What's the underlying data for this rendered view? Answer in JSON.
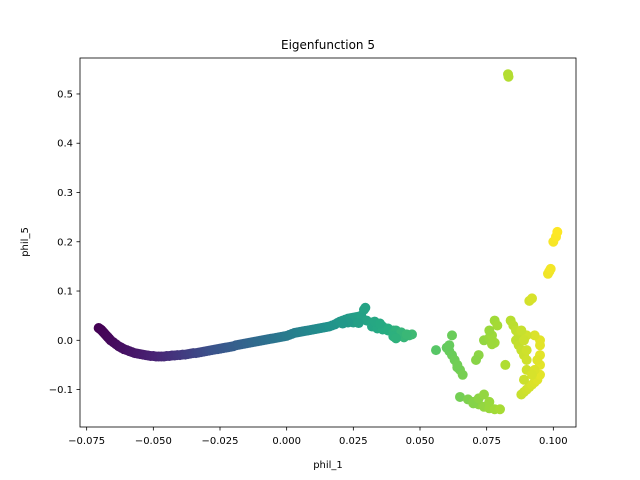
{
  "chart_data": {
    "type": "scatter",
    "title": "Eigenfunction 5",
    "xlabel": "phil_1",
    "ylabel": "phil_5",
    "xlim": [
      -0.0775,
      0.1085
    ],
    "ylim": [
      -0.176,
      0.573
    ],
    "x_ticks": [
      -0.075,
      -0.05,
      -0.025,
      0.0,
      0.025,
      0.05,
      0.075,
      0.1
    ],
    "x_tick_labels": [
      "−0.075",
      "−0.050",
      "−0.025",
      "0.000",
      "0.025",
      "0.050",
      "0.075",
      "0.100"
    ],
    "y_ticks": [
      -0.1,
      0.0,
      0.1,
      0.2,
      0.3,
      0.4,
      0.5
    ],
    "y_tick_labels": [
      "−0.1",
      "0.0",
      "0.1",
      "0.2",
      "0.3",
      "0.4",
      "0.5"
    ],
    "grid": false,
    "legend": "none",
    "colormap": "viridis",
    "color_by": "x",
    "series": [
      {
        "points": [
          [
            -0.0705,
            0.025
          ],
          [
            -0.07,
            0.023
          ],
          [
            -0.0695,
            0.021
          ],
          [
            -0.069,
            0.018
          ],
          [
            -0.0685,
            0.015
          ],
          [
            -0.068,
            0.012
          ],
          [
            -0.0675,
            0.009
          ],
          [
            -0.067,
            0.006
          ],
          [
            -0.0665,
            0.003
          ],
          [
            -0.066,
            0.0
          ],
          [
            -0.065,
            -0.004
          ],
          [
            -0.064,
            -0.008
          ],
          [
            -0.063,
            -0.012
          ],
          [
            -0.062,
            -0.015
          ],
          [
            -0.061,
            -0.018
          ],
          [
            -0.06,
            -0.02
          ],
          [
            -0.059,
            -0.022
          ],
          [
            -0.058,
            -0.024
          ],
          [
            -0.057,
            -0.026
          ],
          [
            -0.056,
            -0.027
          ],
          [
            -0.055,
            -0.028
          ],
          [
            -0.054,
            -0.029
          ],
          [
            -0.053,
            -0.03
          ],
          [
            -0.052,
            -0.031
          ],
          [
            -0.051,
            -0.032
          ],
          [
            -0.05,
            -0.032
          ],
          [
            -0.049,
            -0.033
          ],
          [
            -0.048,
            -0.033
          ],
          [
            -0.047,
            -0.033
          ],
          [
            -0.046,
            -0.033
          ],
          [
            -0.045,
            -0.032
          ],
          [
            -0.044,
            -0.032
          ],
          [
            -0.043,
            -0.031
          ],
          [
            -0.042,
            -0.031
          ],
          [
            -0.041,
            -0.03
          ],
          [
            -0.04,
            -0.03
          ],
          [
            -0.039,
            -0.029
          ],
          [
            -0.038,
            -0.029
          ],
          [
            -0.037,
            -0.028
          ],
          [
            -0.036,
            -0.027
          ],
          [
            -0.035,
            -0.026
          ],
          [
            -0.034,
            -0.026
          ],
          [
            -0.033,
            -0.025
          ],
          [
            -0.032,
            -0.024
          ],
          [
            -0.031,
            -0.023
          ],
          [
            -0.03,
            -0.022
          ],
          [
            -0.029,
            -0.021
          ],
          [
            -0.028,
            -0.02
          ],
          [
            -0.027,
            -0.019
          ],
          [
            -0.026,
            -0.018
          ],
          [
            -0.025,
            -0.017
          ],
          [
            -0.024,
            -0.016
          ],
          [
            -0.023,
            -0.015
          ],
          [
            -0.022,
            -0.014
          ],
          [
            -0.021,
            -0.013
          ],
          [
            -0.02,
            -0.012
          ],
          [
            -0.019,
            -0.01
          ],
          [
            -0.018,
            -0.009
          ],
          [
            -0.017,
            -0.008
          ],
          [
            -0.016,
            -0.007
          ],
          [
            -0.015,
            -0.006
          ],
          [
            -0.014,
            -0.005
          ],
          [
            -0.013,
            -0.004
          ],
          [
            -0.012,
            -0.003
          ],
          [
            -0.011,
            -0.002
          ],
          [
            -0.01,
            -0.001
          ],
          [
            -0.009,
            0.0
          ],
          [
            -0.008,
            0.001
          ],
          [
            -0.007,
            0.002
          ],
          [
            -0.006,
            0.003
          ],
          [
            -0.005,
            0.004
          ],
          [
            -0.004,
            0.005
          ],
          [
            -0.003,
            0.006
          ],
          [
            -0.002,
            0.007
          ],
          [
            -0.001,
            0.008
          ],
          [
            0.0,
            0.009
          ],
          [
            0.001,
            0.011
          ],
          [
            0.002,
            0.013
          ],
          [
            0.003,
            0.015
          ],
          [
            0.004,
            0.016
          ],
          [
            0.005,
            0.017
          ],
          [
            0.006,
            0.018
          ],
          [
            0.007,
            0.019
          ],
          [
            0.008,
            0.02
          ],
          [
            0.009,
            0.021
          ],
          [
            0.01,
            0.022
          ],
          [
            0.011,
            0.023
          ],
          [
            0.012,
            0.024
          ],
          [
            0.013,
            0.025
          ],
          [
            0.014,
            0.026
          ],
          [
            0.015,
            0.027
          ],
          [
            0.016,
            0.028
          ],
          [
            0.017,
            0.03
          ],
          [
            0.018,
            0.032
          ],
          [
            0.019,
            0.035
          ],
          [
            0.02,
            0.038
          ],
          [
            0.021,
            0.04
          ],
          [
            0.022,
            0.042
          ],
          [
            0.023,
            0.044
          ],
          [
            0.024,
            0.045
          ],
          [
            0.025,
            0.046
          ],
          [
            0.026,
            0.047
          ],
          [
            0.027,
            0.048
          ],
          [
            0.028,
            0.05
          ],
          [
            0.029,
            0.062
          ],
          [
            0.0295,
            0.066
          ],
          [
            0.028,
            0.045
          ],
          [
            0.03,
            0.04
          ],
          [
            0.032,
            0.036
          ],
          [
            0.034,
            0.032
          ],
          [
            0.036,
            0.028
          ],
          [
            0.038,
            0.024
          ],
          [
            0.04,
            0.02
          ],
          [
            0.042,
            0.016
          ],
          [
            0.044,
            0.012
          ],
          [
            0.046,
            0.01
          ],
          [
            0.047,
            0.012
          ],
          [
            0.032,
            0.028
          ],
          [
            0.034,
            0.024
          ],
          [
            0.036,
            0.022
          ],
          [
            0.038,
            0.02
          ],
          [
            0.04,
            0.015
          ],
          [
            0.042,
            0.01
          ],
          [
            0.044,
            0.006
          ],
          [
            0.033,
            0.038
          ],
          [
            0.035,
            0.034
          ],
          [
            0.025,
            0.036
          ],
          [
            0.023,
            0.036
          ],
          [
            0.021,
            0.034
          ],
          [
            0.041,
            0.02
          ],
          [
            0.043,
            0.016
          ],
          [
            0.045,
            0.012
          ],
          [
            0.04,
            0.008
          ],
          [
            0.041,
            0.004
          ],
          [
            0.027,
            0.035
          ],
          [
            0.056,
            -0.02
          ],
          [
            0.06,
            -0.015
          ],
          [
            0.061,
            -0.022
          ],
          [
            0.062,
            -0.03
          ],
          [
            0.063,
            -0.04
          ],
          [
            0.064,
            -0.05
          ],
          [
            0.065,
            -0.06
          ],
          [
            0.061,
            -0.01
          ],
          [
            0.062,
            0.01
          ],
          [
            0.064,
            -0.055
          ],
          [
            0.066,
            -0.07
          ],
          [
            0.065,
            -0.115
          ],
          [
            0.068,
            -0.12
          ],
          [
            0.07,
            -0.125
          ],
          [
            0.072,
            -0.13
          ],
          [
            0.074,
            -0.135
          ],
          [
            0.076,
            -0.138
          ],
          [
            0.078,
            -0.14
          ],
          [
            0.08,
            -0.14
          ],
          [
            0.07,
            -0.128
          ],
          [
            0.072,
            -0.118
          ],
          [
            0.074,
            -0.11
          ],
          [
            0.076,
            -0.125
          ],
          [
            0.072,
            -0.03
          ],
          [
            0.071,
            -0.04
          ],
          [
            0.074,
            0.0
          ],
          [
            0.076,
            0.005
          ],
          [
            0.078,
            -0.005
          ],
          [
            0.077,
            0.01
          ],
          [
            0.078,
            0.04
          ],
          [
            0.079,
            0.03
          ],
          [
            0.076,
            0.02
          ],
          [
            0.077,
            -0.008
          ],
          [
            0.083,
            0.54
          ],
          [
            0.0832,
            0.535
          ],
          [
            0.082,
            -0.05
          ],
          [
            0.084,
            0.04
          ],
          [
            0.085,
            0.03
          ],
          [
            0.086,
            0.02
          ],
          [
            0.087,
            0.01
          ],
          [
            0.086,
            0.0
          ],
          [
            0.087,
            -0.01
          ],
          [
            0.088,
            -0.02
          ],
          [
            0.089,
            -0.03
          ],
          [
            0.09,
            -0.04
          ],
          [
            0.09,
            -0.06
          ],
          [
            0.088,
            -0.11
          ],
          [
            0.089,
            -0.105
          ],
          [
            0.09,
            -0.1
          ],
          [
            0.091,
            -0.095
          ],
          [
            0.092,
            -0.09
          ],
          [
            0.093,
            -0.085
          ],
          [
            0.094,
            -0.08
          ],
          [
            0.095,
            -0.07
          ],
          [
            0.095,
            -0.05
          ],
          [
            0.095,
            -0.03
          ],
          [
            0.095,
            -0.01
          ],
          [
            0.095,
            0.0
          ],
          [
            0.093,
            0.01
          ],
          [
            0.09,
            0.01
          ],
          [
            0.091,
            0.08
          ],
          [
            0.092,
            0.085
          ],
          [
            0.098,
            0.135
          ],
          [
            0.0985,
            0.14
          ],
          [
            0.099,
            0.145
          ],
          [
            0.1,
            0.2
          ],
          [
            0.101,
            0.21
          ],
          [
            0.1015,
            0.22
          ],
          [
            0.088,
            0.02
          ],
          [
            0.089,
            0.0
          ],
          [
            0.093,
            -0.06
          ],
          [
            0.094,
            -0.04
          ],
          [
            0.092,
            -0.07
          ],
          [
            0.089,
            -0.08
          ],
          [
            0.09,
            -0.02
          ]
        ]
      }
    ]
  }
}
